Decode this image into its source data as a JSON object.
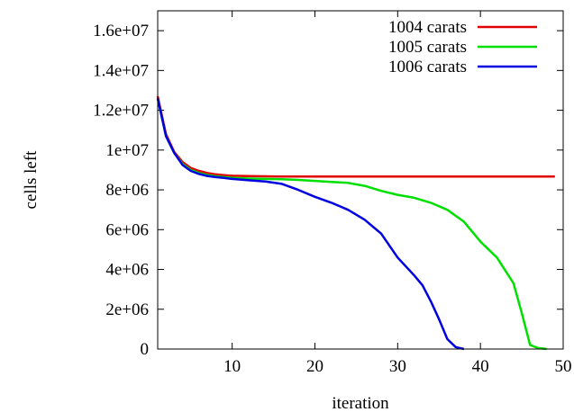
{
  "chart_data": {
    "type": "line",
    "xlabel": "iteration",
    "ylabel": "cells left",
    "xlim": [
      1,
      50
    ],
    "ylim": [
      0,
      17000000
    ],
    "x_ticks": [
      10,
      20,
      30,
      40,
      50
    ],
    "y_ticks": [
      0,
      2000000,
      4000000,
      6000000,
      8000000,
      10000000,
      12000000,
      14000000,
      16000000
    ],
    "x_tick_labels": [
      "10",
      "20",
      "30",
      "40",
      "50"
    ],
    "y_tick_labels": [
      "0",
      "2e+06",
      "4e+06",
      "6e+06",
      "8e+06",
      "1e+07",
      "1.2e+07",
      "1.4e+07",
      "1.6e+07"
    ],
    "grid": false,
    "legend_position": "top-right",
    "series": [
      {
        "name": "1004 carats",
        "color": "#e00000",
        "x": [
          1,
          2,
          3,
          4,
          5,
          6,
          7,
          8,
          9,
          10,
          12,
          14,
          16,
          18,
          20,
          25,
          30,
          35,
          40,
          45,
          49
        ],
        "y": [
          12700000,
          10800000,
          9900000,
          9400000,
          9100000,
          8950000,
          8850000,
          8780000,
          8740000,
          8710000,
          8690000,
          8680000,
          8670000,
          8670000,
          8670000,
          8670000,
          8670000,
          8670000,
          8670000,
          8670000,
          8670000
        ]
      },
      {
        "name": "1005 carats",
        "color": "#00e000",
        "x": [
          1,
          2,
          3,
          4,
          5,
          6,
          7,
          8,
          9,
          10,
          12,
          14,
          16,
          18,
          20,
          22,
          24,
          26,
          28,
          30,
          32,
          34,
          36,
          38,
          40,
          42,
          44,
          45,
          46,
          47,
          48
        ],
        "y": [
          12600000,
          10700000,
          9850000,
          9300000,
          9000000,
          8850000,
          8750000,
          8680000,
          8640000,
          8600000,
          8570000,
          8550000,
          8530000,
          8500000,
          8450000,
          8400000,
          8350000,
          8200000,
          7950000,
          7750000,
          7600000,
          7350000,
          7000000,
          6400000,
          5400000,
          4600000,
          3300000,
          1800000,
          200000,
          50000,
          0
        ]
      },
      {
        "name": "1006 carats",
        "color": "#0000e0",
        "x": [
          1,
          2,
          3,
          4,
          5,
          6,
          7,
          8,
          9,
          10,
          12,
          14,
          16,
          18,
          20,
          22,
          24,
          26,
          28,
          30,
          32,
          33,
          34,
          35,
          36,
          37,
          38
        ],
        "y": [
          12600000,
          10700000,
          9850000,
          9250000,
          8950000,
          8800000,
          8700000,
          8640000,
          8600000,
          8550000,
          8480000,
          8420000,
          8300000,
          8000000,
          7650000,
          7350000,
          7000000,
          6500000,
          5800000,
          4600000,
          3700000,
          3200000,
          2400000,
          1500000,
          500000,
          100000,
          0
        ]
      }
    ]
  }
}
